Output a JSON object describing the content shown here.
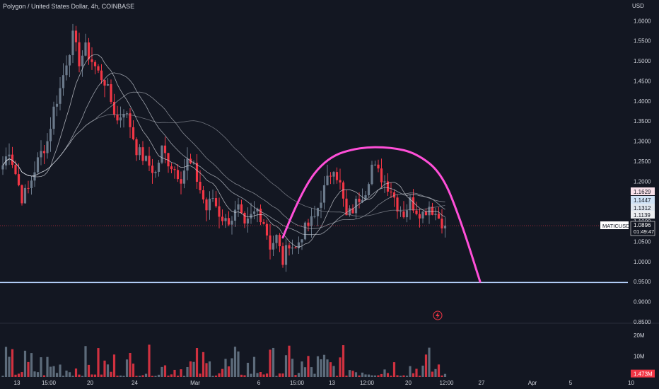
{
  "header": {
    "title": "Polygon / United States Dollar, 4h, COINBASE",
    "currency": "USD"
  },
  "colors": {
    "background": "#131722",
    "up": "#6b7a8b",
    "down": "#f23645",
    "grid": "#1f2430",
    "axis_text": "#d1d4dc",
    "arc": "#ff4fd8",
    "support_line": "#b8d4ff",
    "ma1": "#c7ccd6",
    "ma2": "#a9adb6",
    "ma3": "#8c9099"
  },
  "price_labels": [
    {
      "text": "1.1629",
      "bg": "#f8e1ea",
      "fg": "#131722"
    },
    {
      "text": "1.1447",
      "bg": "#cfe2f6",
      "fg": "#131722"
    },
    {
      "text": "1.1312",
      "bg": "#dfe6ef",
      "fg": "#131722"
    },
    {
      "text": "1.1139",
      "bg": "#ebedf0",
      "fg": "#131722"
    }
  ],
  "last_price": {
    "symbol": "MATICUSD",
    "price": "1.0896",
    "countdown": "01:49:47"
  },
  "volume_label": {
    "text": "1.473M",
    "bg": "#f23645"
  },
  "lightning_icon": "lightning-icon",
  "chart_data": {
    "type": "candlestick",
    "title": "Polygon / United States Dollar, 4h, COINBASE",
    "y_axis": {
      "range": [
        0.85,
        1.62
      ],
      "ticks": [
        0.85,
        0.9,
        0.95,
        1.0,
        1.05,
        1.1,
        1.15,
        1.2,
        1.25,
        1.3,
        1.35,
        1.4,
        1.45,
        1.5,
        1.55,
        1.6
      ],
      "tick_labels": [
        "0.8500",
        "0.9000",
        "0.9500",
        "1.0000",
        "1.0500",
        "1.1000",
        "1.1500",
        "1.2000",
        "1.2500",
        "1.3000",
        "1.3500",
        "1.4000",
        "1.4500",
        "1.5000",
        "1.5500",
        "1.6000"
      ]
    },
    "volume_axis": {
      "range": [
        0,
        22
      ],
      "ticks": [
        10,
        20
      ],
      "tick_labels": [
        "10M",
        "20M"
      ]
    },
    "x_axis": {
      "tick_labels": [
        "13",
        "15:00",
        "20",
        "24",
        "Mar",
        "6",
        "15:00",
        "13",
        "12:00",
        "20",
        "12:00",
        "27",
        "Apr",
        "5",
        "10"
      ],
      "tick_positions": [
        0,
        10,
        23,
        37,
        56,
        76,
        88,
        99,
        110,
        123,
        135,
        146,
        162,
        174,
        193
      ]
    },
    "grid": false,
    "close_anchors": [
      [
        0,
        1.24
      ],
      [
        2,
        1.28
      ],
      [
        4,
        1.22
      ],
      [
        6,
        1.16
      ],
      [
        8,
        1.18
      ],
      [
        10,
        1.23
      ],
      [
        12,
        1.27
      ],
      [
        14,
        1.3
      ],
      [
        16,
        1.38
      ],
      [
        18,
        1.43
      ],
      [
        20,
        1.5
      ],
      [
        22,
        1.56
      ],
      [
        24,
        1.5
      ],
      [
        26,
        1.53
      ],
      [
        28,
        1.5
      ],
      [
        30,
        1.47
      ],
      [
        32,
        1.45
      ],
      [
        34,
        1.4
      ],
      [
        36,
        1.35
      ],
      [
        38,
        1.38
      ],
      [
        40,
        1.34
      ],
      [
        42,
        1.28
      ],
      [
        44,
        1.26
      ],
      [
        46,
        1.24
      ],
      [
        48,
        1.22
      ],
      [
        50,
        1.28
      ],
      [
        52,
        1.25
      ],
      [
        54,
        1.23
      ],
      [
        56,
        1.21
      ],
      [
        58,
        1.25
      ],
      [
        60,
        1.23
      ],
      [
        62,
        1.18
      ],
      [
        64,
        1.13
      ],
      [
        66,
        1.16
      ],
      [
        68,
        1.12
      ],
      [
        70,
        1.1
      ],
      [
        72,
        1.11
      ],
      [
        74,
        1.13
      ],
      [
        76,
        1.08
      ],
      [
        78,
        1.11
      ],
      [
        80,
        1.13
      ],
      [
        82,
        1.1
      ],
      [
        84,
        1.04
      ],
      [
        86,
        1.06
      ],
      [
        88,
        1.0
      ],
      [
        90,
        1.05
      ],
      [
        92,
        1.03
      ],
      [
        94,
        1.07
      ],
      [
        96,
        1.09
      ],
      [
        98,
        1.11
      ],
      [
        100,
        1.16
      ],
      [
        102,
        1.2
      ],
      [
        104,
        1.24
      ],
      [
        106,
        1.19
      ],
      [
        108,
        1.11
      ],
      [
        110,
        1.13
      ],
      [
        112,
        1.16
      ],
      [
        114,
        1.18
      ],
      [
        116,
        1.24
      ],
      [
        118,
        1.22
      ],
      [
        120,
        1.2
      ],
      [
        122,
        1.18
      ],
      [
        124,
        1.14
      ],
      [
        126,
        1.12
      ],
      [
        128,
        1.15
      ],
      [
        130,
        1.13
      ],
      [
        132,
        1.12
      ],
      [
        134,
        1.14
      ],
      [
        136,
        1.12
      ],
      [
        138,
        1.1
      ],
      [
        139,
        1.09
      ]
    ],
    "candle_count": 140,
    "volume_range_millions": [
      0.5,
      15.5
    ],
    "last_volume": 1.473,
    "moving_averages": [
      {
        "label": "1.1629",
        "period": 50
      },
      {
        "label": "1.1447",
        "period": 30
      },
      {
        "label": "1.1312",
        "period": 20
      },
      {
        "label": "1.1139",
        "period": 10
      }
    ],
    "support_level": 0.948,
    "last_close": 1.0896,
    "annotation_arc": {
      "description": "hand-drawn dome / rounding-top",
      "points": [
        [
          88,
          1.06
        ],
        [
          94,
          1.18
        ],
        [
          102,
          1.26
        ],
        [
          112,
          1.285
        ],
        [
          122,
          1.285
        ],
        [
          130,
          1.27
        ],
        [
          138,
          1.22
        ],
        [
          144,
          1.1
        ],
        [
          150,
          0.95
        ]
      ]
    }
  }
}
